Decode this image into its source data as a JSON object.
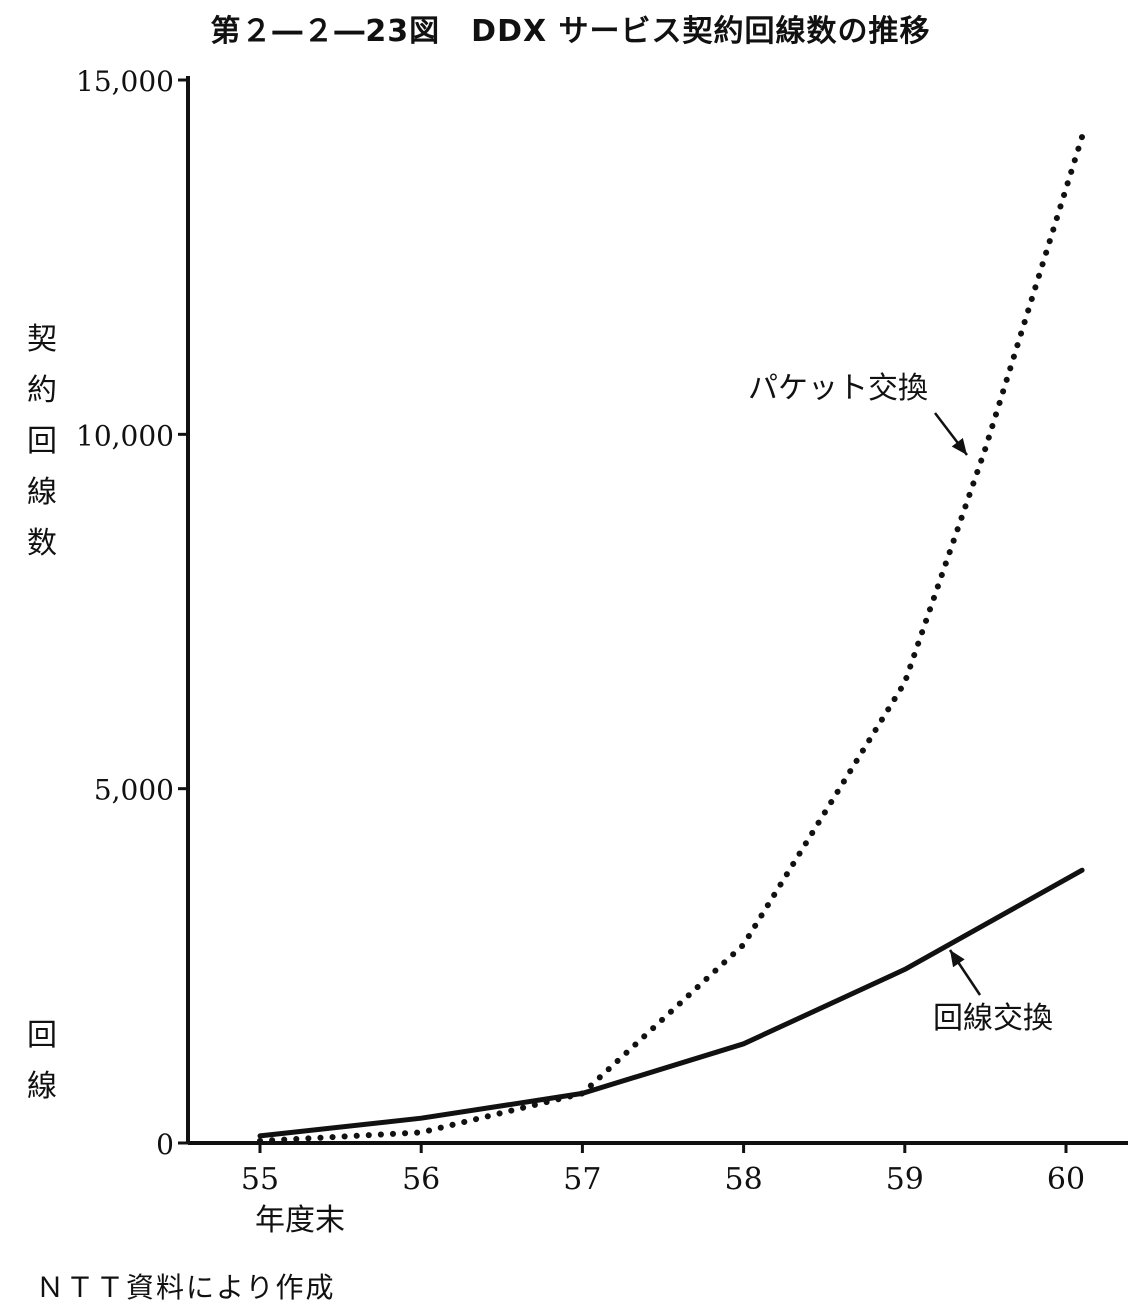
{
  "figure": {
    "title": "第２―２―23図　DDX サービス契約回線数の推移",
    "ylabel_main": [
      "契",
      "約",
      "回",
      "線",
      "数"
    ],
    "ylabel_sub": [
      "回",
      "線"
    ],
    "source": "ＮＴＴ資料により作成"
  },
  "chart_data": {
    "type": "line",
    "title": "第２―２―23図　DDX サービス契約回線数の推移",
    "xlabel": "年度末",
    "ylabel": "契約回線数",
    "categories": [
      "55",
      "56",
      "57",
      "58",
      "59",
      "60"
    ],
    "yticks": [
      0,
      5000,
      10000,
      15000
    ],
    "ytick_labels": [
      "0",
      "5,000",
      "10,000",
      "15,000"
    ],
    "ylim": [
      0,
      15000
    ],
    "grid": false,
    "legend": "inline annotations with arrows",
    "series": [
      {
        "name": "パケット交換",
        "style": "dotted",
        "color": "#111111",
        "x": [
          55.0,
          56.0,
          57.0,
          58.0,
          59.0,
          59.5,
          60.1
        ],
        "values": [
          30,
          150,
          700,
          2800,
          6500,
          9800,
          14200
        ]
      },
      {
        "name": "回線交換",
        "style": "solid",
        "color": "#111111",
        "x": [
          55.0,
          56.0,
          57.0,
          58.0,
          59.0,
          60.1
        ],
        "values": [
          100,
          350,
          700,
          1400,
          2450,
          3850
        ]
      }
    ]
  }
}
